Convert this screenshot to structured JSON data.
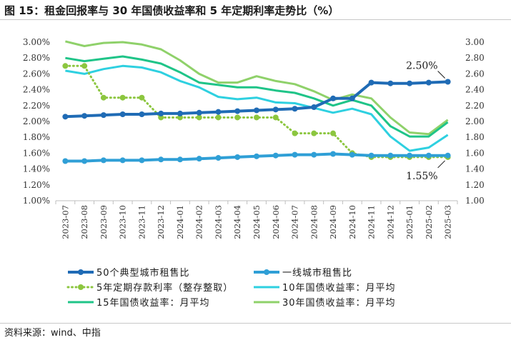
{
  "title": "图 15：租金回报率与 30 年国债收益率和 5 年定期利率走势比（%）",
  "source": "资料来源：wind、中指",
  "chart_data": {
    "type": "line",
    "categories": [
      "2023-07",
      "2023-08",
      "2023-09",
      "2023-10",
      "2023-11",
      "2023-12",
      "2024-01",
      "2024-02",
      "2024-03",
      "2024-04",
      "2024-05",
      "2024-06",
      "2024-07",
      "2024-08",
      "2024-09",
      "2024-10",
      "2024-11",
      "2024-12",
      "2025-01",
      "2025-02",
      "2025-03"
    ],
    "y_left": {
      "min": 1.0,
      "max": 3.0,
      "ticks": [
        "1.00%",
        "1.20%",
        "1.40%",
        "1.60%",
        "1.80%",
        "2.00%",
        "2.20%",
        "2.40%",
        "2.60%",
        "2.80%",
        "3.00%"
      ]
    },
    "y_right": {
      "min": 1.0,
      "max": 3.0,
      "ticks": [
        "1.00",
        "1.20",
        "1.40",
        "1.60",
        "1.80",
        "2.00",
        "2.20",
        "2.40",
        "2.60",
        "2.80",
        "3.00"
      ]
    },
    "series": [
      {
        "name": "50个典型城市租售比",
        "axis": "left",
        "color": "#1f6bb5",
        "style": "line-marker",
        "values": [
          2.06,
          2.07,
          2.08,
          2.09,
          2.09,
          2.1,
          2.1,
          2.11,
          2.12,
          2.13,
          2.14,
          2.15,
          2.16,
          2.18,
          2.29,
          2.29,
          2.49,
          2.48,
          2.48,
          2.49,
          2.5
        ]
      },
      {
        "name": "一线城市租售比",
        "axis": "left",
        "color": "#2f9fd6",
        "style": "line-marker",
        "values": [
          1.5,
          1.5,
          1.51,
          1.51,
          1.51,
          1.52,
          1.52,
          1.53,
          1.54,
          1.55,
          1.56,
          1.57,
          1.58,
          1.58,
          1.59,
          1.58,
          1.57,
          1.57,
          1.57,
          1.57,
          1.57
        ]
      },
      {
        "name": "5年定期存款利率（整存整取）",
        "axis": "right",
        "color": "#8cc63f",
        "style": "dotted-marker",
        "values": [
          2.7,
          2.7,
          2.3,
          2.3,
          2.3,
          2.05,
          2.05,
          2.05,
          2.05,
          2.05,
          2.05,
          2.05,
          1.85,
          1.85,
          1.85,
          1.6,
          1.55,
          1.55,
          1.55,
          1.55,
          1.55
        ]
      },
      {
        "name": "10年国债收益率：月平均",
        "axis": "right",
        "color": "#2ed0e0",
        "style": "line",
        "values": [
          2.64,
          2.6,
          2.66,
          2.7,
          2.68,
          2.62,
          2.51,
          2.43,
          2.31,
          2.28,
          2.3,
          2.24,
          2.23,
          2.17,
          2.11,
          2.16,
          2.09,
          1.81,
          1.63,
          1.67,
          1.83
        ]
      },
      {
        "name": "15年国债收益率：月平均",
        "axis": "right",
        "color": "#1fc488",
        "style": "line",
        "values": [
          2.8,
          2.76,
          2.79,
          2.82,
          2.78,
          2.73,
          2.62,
          2.49,
          2.46,
          2.43,
          2.43,
          2.39,
          2.36,
          2.29,
          2.2,
          2.27,
          2.2,
          1.94,
          1.81,
          1.81,
          1.99
        ]
      },
      {
        "name": "30年国债收益率：月平均",
        "axis": "right",
        "color": "#8fd16a",
        "style": "line",
        "values": [
          3.01,
          2.95,
          2.99,
          3.0,
          2.97,
          2.91,
          2.77,
          2.6,
          2.49,
          2.49,
          2.57,
          2.51,
          2.47,
          2.38,
          2.27,
          2.34,
          2.29,
          2.05,
          1.86,
          1.84,
          2.02
        ]
      }
    ],
    "annotations": [
      {
        "text": "2.50%",
        "series": 0,
        "index": 20
      },
      {
        "text": "1.55%",
        "series": 2,
        "index": 20
      }
    ],
    "legend_position": "bottom"
  }
}
